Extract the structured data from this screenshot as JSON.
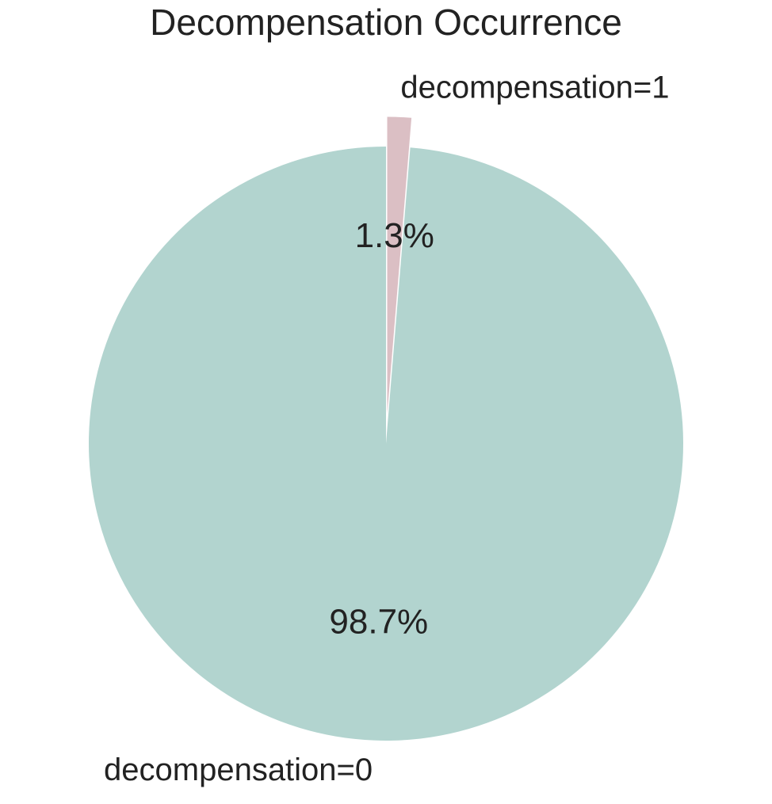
{
  "chart_data": {
    "type": "pie",
    "title": "Decompensation Occurrence",
    "slices": [
      {
        "label": "decompensation=0",
        "value": 98.7,
        "pct_label": "98.7%",
        "color": "#b2d4cf",
        "exploded": false
      },
      {
        "label": "decompensation=1",
        "value": 1.3,
        "pct_label": "1.3%",
        "color": "#dbbfc4",
        "exploded": true
      }
    ],
    "start_angle_deg": 90,
    "direction": "counterclockwise"
  }
}
